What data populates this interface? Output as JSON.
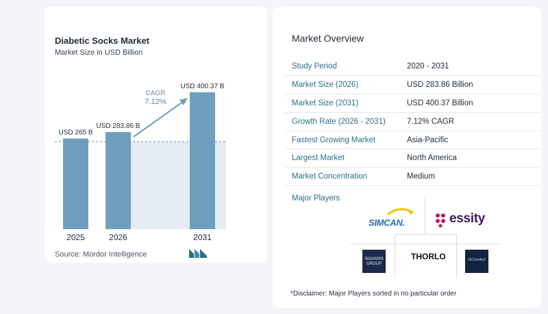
{
  "chart_data": {
    "type": "bar",
    "title": "Diabetic Socks Market",
    "subtitle": "Market Size in USD Billion",
    "categories": [
      "2025",
      "2026",
      "2031"
    ],
    "values": [
      265,
      283.86,
      400.37
    ],
    "data_labels": [
      "USD 265 B",
      "USD 283.86 B",
      "USD 400.37 B"
    ],
    "ylim": [
      0,
      420
    ],
    "grid": false,
    "cagr_label": "CAGR",
    "cagr_value": "7.12%",
    "bar_color": "#6f9fbf",
    "highlight_color": "#e4edf5",
    "source": "Source:  Mordor Intelligence"
  },
  "overview": {
    "title": "Market Overview",
    "rows": [
      {
        "key": "Study Period",
        "value": "2020 - 2031"
      },
      {
        "key": "Market Size (2026)",
        "value": "USD 283.86 Billion"
      },
      {
        "key": "Market Size (2031)",
        "value": "USD 400.37 Billion"
      },
      {
        "key": "Growth Rate (2026 - 2031)",
        "value": "7.12% CAGR"
      },
      {
        "key": "Fastest Growing Market",
        "value": "Asia-Pacific"
      },
      {
        "key": "Largest Market",
        "value": "North America"
      },
      {
        "key": "Market Concentration",
        "value": "Medium"
      }
    ]
  },
  "players": {
    "title": "Major Players",
    "simcan": "SIMCAN.",
    "essity": "essity",
    "sigvaris": "SIGVARIS GROUP",
    "thorlo": "THORLO",
    "drcomfort": "DrComfort"
  },
  "disclaimer": "*Disclaimer: Major Players sorted in no particular order"
}
